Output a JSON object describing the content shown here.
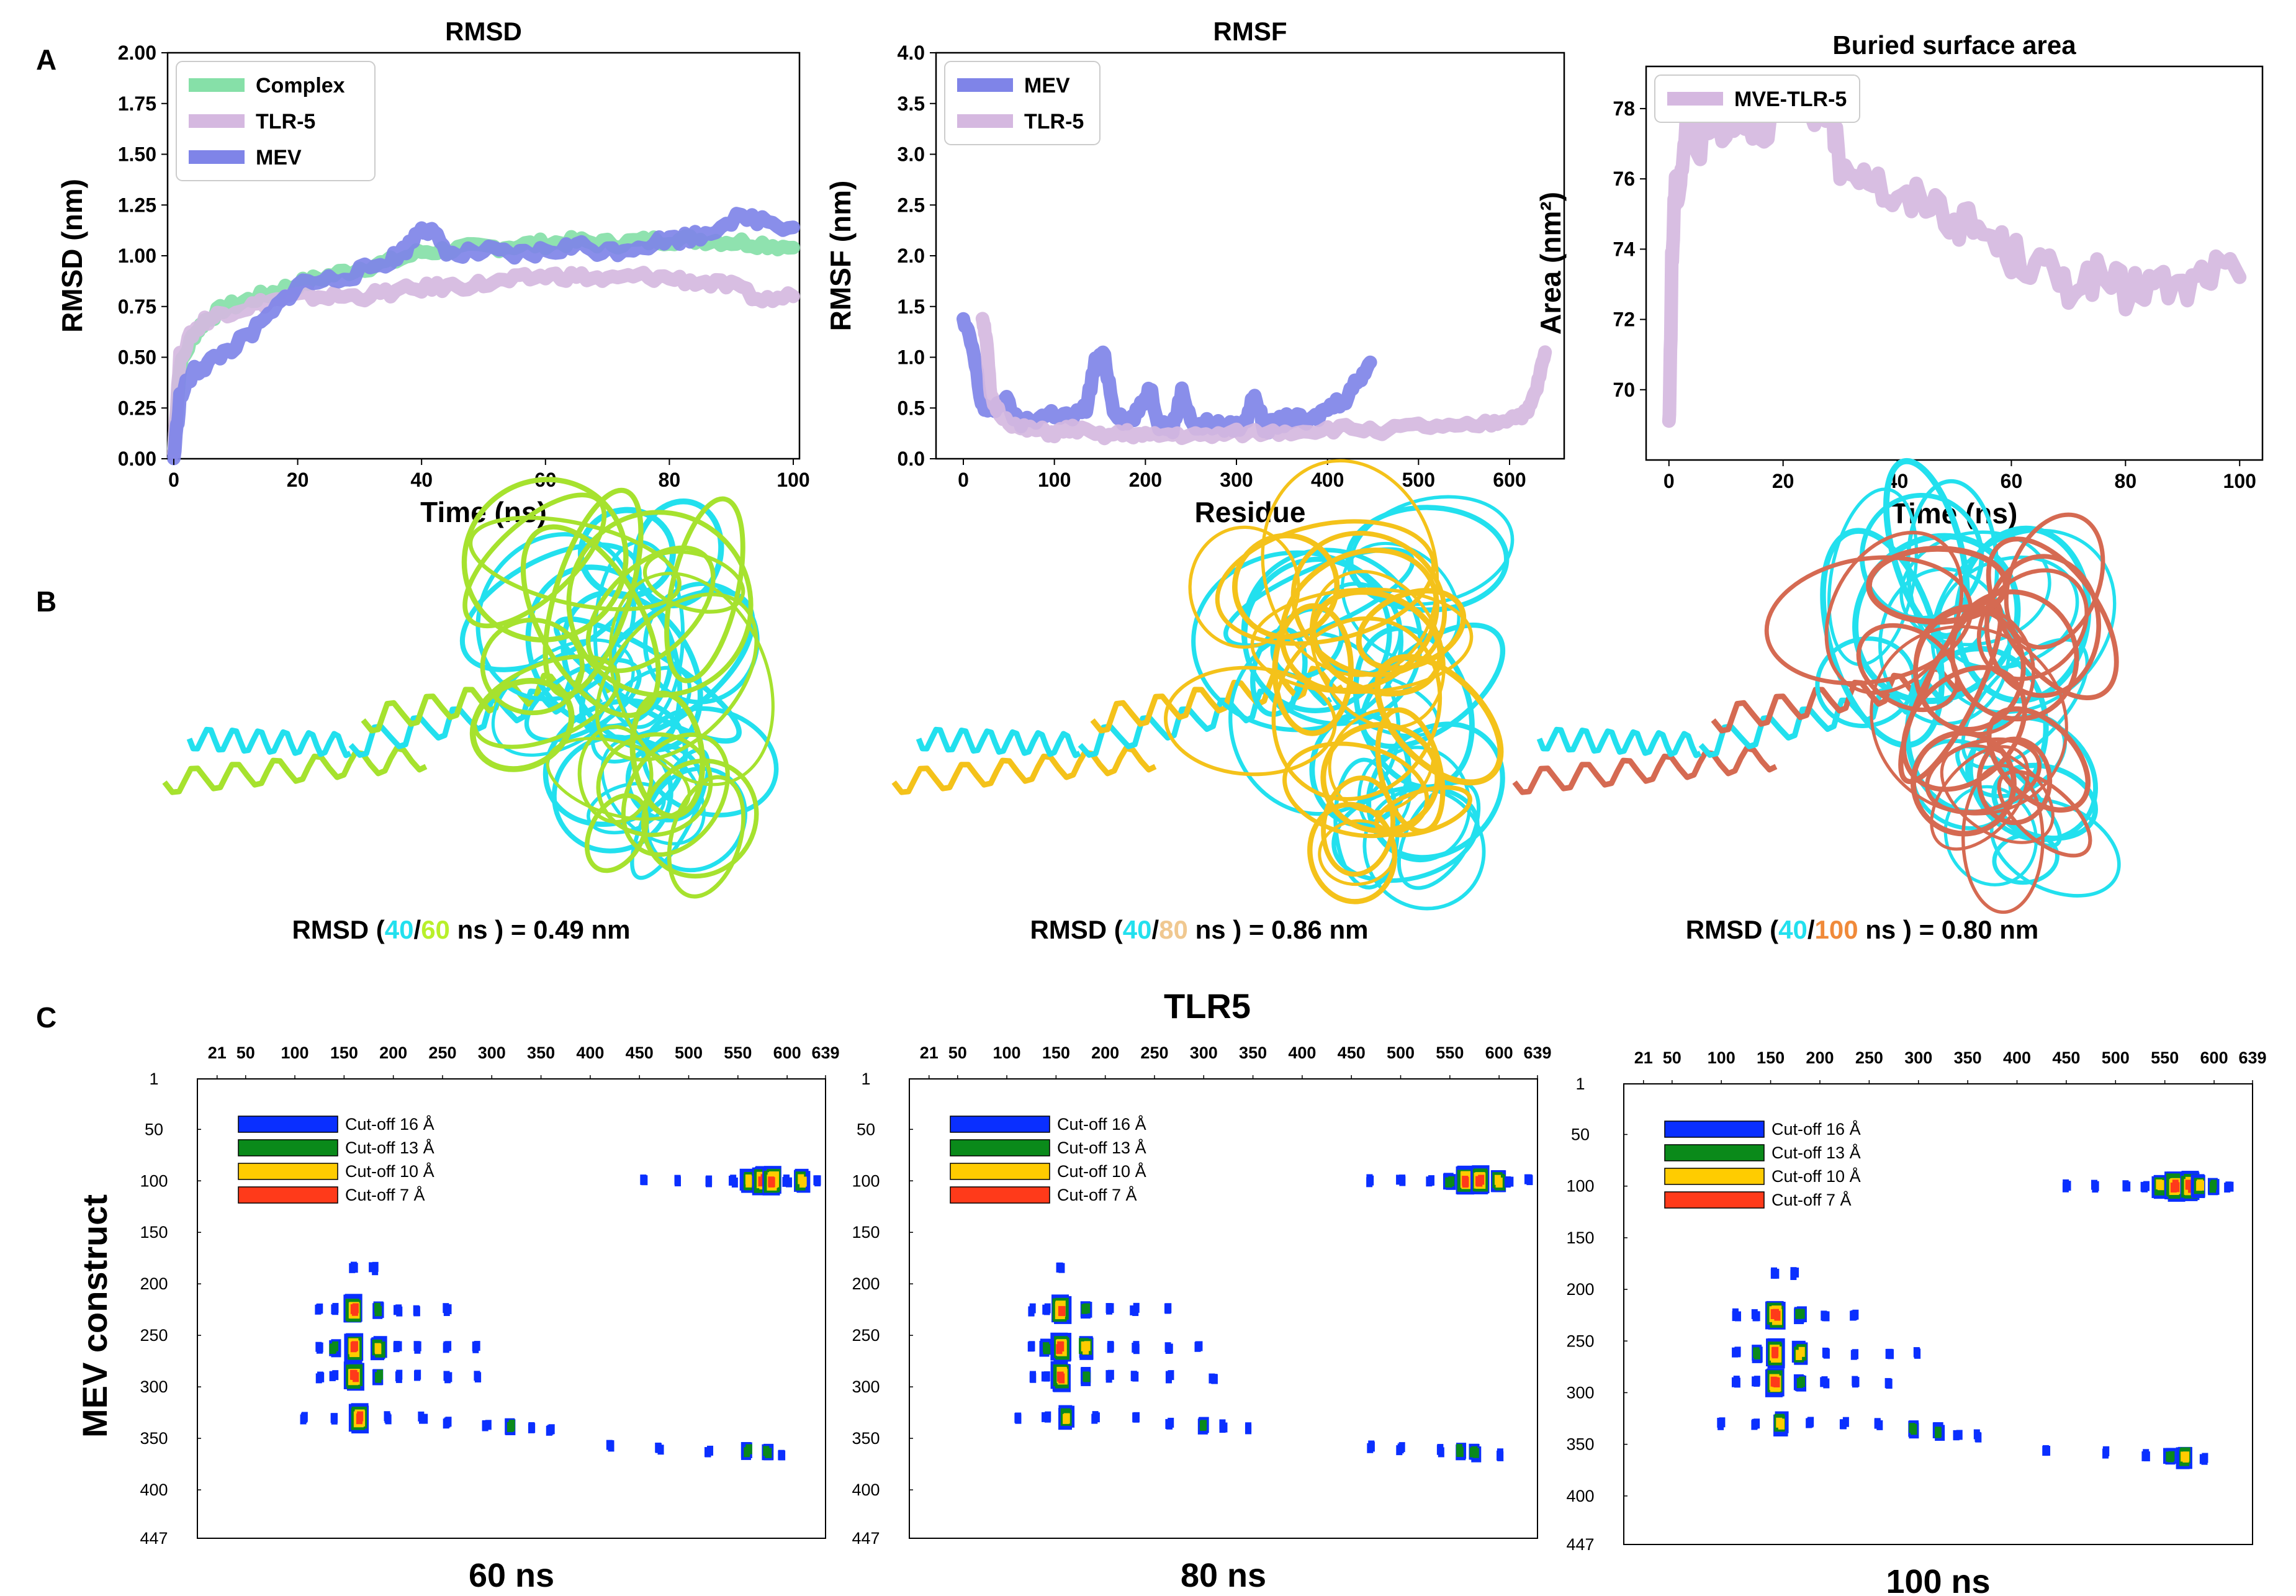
{
  "panel_labels": {
    "a": "A",
    "b": "B",
    "c": "C"
  },
  "colors": {
    "complex": "#86e0a8",
    "tlr5": "#d5b8e0",
    "mev": "#7f84e8",
    "cyan": "#22e0ee",
    "green_structure": "#a6e22e",
    "yellow_structure": "#f4c21a",
    "salmon_structure": "#d56a52",
    "text_60": "#b8f02a",
    "text_80": "#f0c890",
    "text_100": "#f08a3a",
    "contact_blue": "#0a2fff",
    "contact_green": "#0a8a1a",
    "contact_yellow": "#ffcc00",
    "contact_red": "#ff3a1a"
  },
  "chart_data": [
    {
      "type": "line",
      "title": "RMSD",
      "xlabel": "Time (ns)",
      "ylabel": "RMSD (nm)",
      "xlim": [
        -1,
        101
      ],
      "ylim": [
        0,
        2.0
      ],
      "xticks": [
        "0",
        "20",
        "40",
        "60",
        "80",
        "100"
      ],
      "yticks": [
        "0.00",
        "0.25",
        "0.50",
        "0.75",
        "1.00",
        "1.25",
        "1.50",
        "1.75",
        "2.00"
      ],
      "legend_position": "top-left",
      "series": [
        {
          "name": "Complex",
          "color": "#86e0a8",
          "x": [
            0,
            1,
            3,
            5,
            8,
            12,
            16,
            20,
            25,
            30,
            35,
            40,
            45,
            50,
            55,
            60,
            65,
            70,
            75,
            80,
            85,
            90,
            95,
            100
          ],
          "y": [
            0.05,
            0.45,
            0.6,
            0.68,
            0.74,
            0.78,
            0.82,
            0.86,
            0.9,
            0.94,
            0.97,
            1.02,
            1.03,
            1.04,
            1.05,
            1.06,
            1.07,
            1.06,
            1.07,
            1.08,
            1.08,
            1.07,
            1.06,
            1.04
          ]
        },
        {
          "name": "TLR-5",
          "color": "#d5b8e0",
          "x": [
            0,
            1,
            3,
            5,
            8,
            12,
            16,
            20,
            25,
            30,
            35,
            40,
            45,
            50,
            55,
            60,
            65,
            70,
            75,
            80,
            85,
            90,
            95,
            100
          ],
          "y": [
            0.05,
            0.5,
            0.62,
            0.68,
            0.72,
            0.75,
            0.78,
            0.8,
            0.8,
            0.8,
            0.82,
            0.84,
            0.85,
            0.86,
            0.88,
            0.9,
            0.9,
            0.88,
            0.9,
            0.89,
            0.87,
            0.85,
            0.78,
            0.8
          ]
        },
        {
          "name": "MEV",
          "color": "#7f84e8",
          "x": [
            0,
            1,
            3,
            5,
            8,
            12,
            16,
            20,
            25,
            30,
            35,
            38,
            40,
            42,
            45,
            50,
            55,
            60,
            65,
            70,
            75,
            80,
            85,
            90,
            95,
            100
          ],
          "y": [
            0.0,
            0.3,
            0.42,
            0.46,
            0.52,
            0.6,
            0.72,
            0.86,
            0.88,
            0.92,
            0.98,
            1.05,
            1.15,
            1.1,
            1.0,
            1.02,
            1.0,
            1.02,
            1.05,
            1.02,
            1.05,
            1.08,
            1.1,
            1.18,
            1.18,
            1.14
          ]
        }
      ]
    },
    {
      "type": "line",
      "title": "RMSF",
      "xlabel": "Residue",
      "ylabel": "RMSF (nm)",
      "xlim": [
        -30,
        660
      ],
      "ylim": [
        0,
        4.0
      ],
      "xticks": [
        "0",
        "100",
        "200",
        "300",
        "400",
        "500",
        "600"
      ],
      "yticks": [
        "0.0",
        "0.5",
        "1.0",
        "1.5",
        "2.0",
        "2.5",
        "3.0",
        "3.5",
        "4.0"
      ],
      "legend_position": "top-left",
      "series": [
        {
          "name": "MEV",
          "color": "#7f84e8",
          "x": [
            0,
            10,
            20,
            30,
            45,
            60,
            80,
            100,
            120,
            135,
            145,
            155,
            165,
            180,
            195,
            205,
            215,
            230,
            240,
            255,
            270,
            290,
            310,
            320,
            330,
            345,
            360,
            380,
            400,
            420,
            435,
            447
          ],
          "y": [
            1.35,
            1.1,
            0.55,
            0.45,
            0.6,
            0.35,
            0.4,
            0.45,
            0.4,
            0.5,
            0.95,
            1.0,
            0.5,
            0.35,
            0.5,
            0.7,
            0.35,
            0.3,
            0.65,
            0.3,
            0.35,
            0.3,
            0.35,
            0.65,
            0.3,
            0.35,
            0.4,
            0.35,
            0.5,
            0.6,
            0.8,
            0.95
          ]
        },
        {
          "name": "TLR-5",
          "color": "#d5b8e0",
          "x": [
            21,
            25,
            30,
            40,
            60,
            80,
            100,
            120,
            150,
            180,
            200,
            230,
            260,
            300,
            340,
            380,
            420,
            460,
            500,
            540,
            580,
            600,
            620,
            630,
            639
          ],
          "y": [
            1.4,
            1.2,
            0.6,
            0.45,
            0.3,
            0.28,
            0.25,
            0.3,
            0.22,
            0.25,
            0.22,
            0.24,
            0.22,
            0.25,
            0.26,
            0.28,
            0.3,
            0.28,
            0.32,
            0.3,
            0.35,
            0.4,
            0.45,
            0.7,
            1.05
          ]
        }
      ]
    },
    {
      "type": "line",
      "title": "Buried surface area",
      "xlabel": "Time (ns)",
      "ylabel": "Area (nm²)",
      "xlim": [
        -4,
        104
      ],
      "ylim": [
        68.0,
        79.2
      ],
      "xticks": [
        "0",
        "20",
        "40",
        "60",
        "80",
        "100"
      ],
      "yticks": [
        "70",
        "72",
        "74",
        "76",
        "78"
      ],
      "legend_position": "top-left",
      "series": [
        {
          "name": "MVE-TLR-5",
          "color": "#d5b8e0",
          "x": [
            0,
            0.5,
            1,
            2,
            3,
            5,
            8,
            12,
            16,
            20,
            25,
            28,
            30,
            35,
            40,
            45,
            50,
            55,
            60,
            65,
            70,
            75,
            80,
            85,
            90,
            95,
            100
          ],
          "y": [
            68.6,
            73.5,
            75.5,
            76.0,
            77.5,
            77.0,
            77.5,
            77.8,
            77.5,
            78.0,
            77.5,
            78.2,
            76.5,
            76.2,
            75.2,
            75.5,
            74.8,
            74.5,
            73.8,
            73.5,
            73.0,
            73.2,
            72.8,
            73.0,
            72.8,
            73.4,
            73.2
          ]
        }
      ]
    },
    {
      "type": "heatmap",
      "title": "TLR5",
      "subtitle": "60 ns",
      "xlabel": "TLR5",
      "ylabel": "MEV construct",
      "xticks": [
        "21",
        "50",
        "100",
        "150",
        "200",
        "250",
        "300",
        "350",
        "400",
        "450",
        "500",
        "550",
        "600",
        "639"
      ],
      "yticks": [
        "1",
        "50",
        "100",
        "150",
        "200",
        "250",
        "300",
        "350",
        "400",
        "447"
      ],
      "legend": [
        "Cut-off 16 Å",
        "Cut-off 13 Å",
        "Cut-off 10 Å",
        "Cut-off 7 Å"
      ],
      "contacts": [
        [
          160,
          185,
          1
        ],
        [
          180,
          185,
          1
        ],
        [
          125,
          225,
          1
        ],
        [
          140,
          225,
          1
        ],
        [
          160,
          225,
          4
        ],
        [
          185,
          225,
          2
        ],
        [
          205,
          225,
          1
        ],
        [
          225,
          225,
          1
        ],
        [
          255,
          225,
          1
        ],
        [
          125,
          262,
          1
        ],
        [
          140,
          262,
          2
        ],
        [
          160,
          262,
          4
        ],
        [
          185,
          262,
          3
        ],
        [
          205,
          262,
          1
        ],
        [
          225,
          262,
          1
        ],
        [
          255,
          262,
          1
        ],
        [
          285,
          262,
          1
        ],
        [
          125,
          290,
          1
        ],
        [
          140,
          290,
          1
        ],
        [
          160,
          290,
          4
        ],
        [
          185,
          290,
          2
        ],
        [
          205,
          290,
          1
        ],
        [
          225,
          290,
          1
        ],
        [
          255,
          290,
          1
        ],
        [
          285,
          290,
          1
        ],
        [
          110,
          330,
          1
        ],
        [
          140,
          330,
          1
        ],
        [
          165,
          330,
          4
        ],
        [
          195,
          330,
          1
        ],
        [
          230,
          330,
          1
        ],
        [
          255,
          335,
          1
        ],
        [
          295,
          338,
          1
        ],
        [
          320,
          338,
          2
        ],
        [
          340,
          340,
          1
        ],
        [
          360,
          342,
          1
        ],
        [
          420,
          358,
          1
        ],
        [
          470,
          360,
          1
        ],
        [
          520,
          362,
          1
        ],
        [
          560,
          362,
          2
        ],
        [
          580,
          364,
          2
        ],
        [
          595,
          365,
          1
        ],
        [
          455,
          98,
          1
        ],
        [
          490,
          100,
          1
        ],
        [
          520,
          100,
          1
        ],
        [
          545,
          100,
          1
        ],
        [
          560,
          100,
          3
        ],
        [
          575,
          100,
          4
        ],
        [
          585,
          100,
          4
        ],
        [
          600,
          100,
          1
        ],
        [
          615,
          100,
          3
        ],
        [
          630,
          100,
          1
        ]
      ]
    },
    {
      "type": "heatmap",
      "subtitle": "80 ns",
      "xticks": [
        "21",
        "50",
        "100",
        "150",
        "200",
        "250",
        "300",
        "350",
        "400",
        "450",
        "500",
        "550",
        "600",
        "639"
      ],
      "yticks": [
        "1",
        "50",
        "100",
        "150",
        "200",
        "250",
        "300",
        "350",
        "400",
        "447"
      ],
      "legend": [
        "Cut-off 16 Å",
        "Cut-off 13 Å",
        "Cut-off 10 Å",
        "Cut-off 7 Å"
      ],
      "contacts": [
        [
          155,
          185,
          1
        ],
        [
          125,
          225,
          1
        ],
        [
          140,
          225,
          1
        ],
        [
          155,
          225,
          4
        ],
        [
          180,
          225,
          2
        ],
        [
          205,
          225,
          1
        ],
        [
          230,
          225,
          1
        ],
        [
          265,
          225,
          1
        ],
        [
          125,
          262,
          1
        ],
        [
          140,
          262,
          2
        ],
        [
          155,
          262,
          4
        ],
        [
          180,
          262,
          3
        ],
        [
          205,
          262,
          1
        ],
        [
          230,
          262,
          1
        ],
        [
          265,
          262,
          1
        ],
        [
          295,
          262,
          1
        ],
        [
          125,
          290,
          1
        ],
        [
          140,
          290,
          1
        ],
        [
          155,
          290,
          4
        ],
        [
          180,
          290,
          2
        ],
        [
          205,
          290,
          1
        ],
        [
          230,
          290,
          1
        ],
        [
          265,
          290,
          1
        ],
        [
          310,
          292,
          1
        ],
        [
          110,
          330,
          1
        ],
        [
          140,
          330,
          1
        ],
        [
          160,
          330,
          3
        ],
        [
          190,
          330,
          1
        ],
        [
          230,
          330,
          1
        ],
        [
          265,
          335,
          1
        ],
        [
          300,
          338,
          2
        ],
        [
          320,
          338,
          1
        ],
        [
          345,
          340,
          1
        ],
        [
          470,
          358,
          1
        ],
        [
          500,
          360,
          1
        ],
        [
          540,
          362,
          1
        ],
        [
          560,
          362,
          2
        ],
        [
          575,
          364,
          2
        ],
        [
          600,
          366,
          1
        ],
        [
          470,
          100,
          1
        ],
        [
          500,
          100,
          1
        ],
        [
          530,
          100,
          1
        ],
        [
          550,
          100,
          2
        ],
        [
          565,
          100,
          4
        ],
        [
          580,
          100,
          4
        ],
        [
          600,
          100,
          3
        ],
        [
          610,
          100,
          1
        ],
        [
          630,
          100,
          1
        ]
      ]
    },
    {
      "type": "heatmap",
      "subtitle": "100 ns",
      "xticks": [
        "21",
        "50",
        "100",
        "150",
        "200",
        "250",
        "300",
        "350",
        "400",
        "450",
        "500",
        "550",
        "600",
        "639"
      ],
      "yticks": [
        "1",
        "50",
        "100",
        "150",
        "200",
        "250",
        "300",
        "350",
        "400",
        "447"
      ],
      "legend": [
        "Cut-off 16 Å",
        "Cut-off 13 Å",
        "Cut-off 10 Å",
        "Cut-off 7 Å"
      ],
      "contacts": [
        [
          155,
          185,
          1
        ],
        [
          175,
          185,
          1
        ],
        [
          115,
          225,
          1
        ],
        [
          135,
          225,
          1
        ],
        [
          155,
          225,
          4
        ],
        [
          180,
          225,
          2
        ],
        [
          205,
          225,
          1
        ],
        [
          235,
          225,
          1
        ],
        [
          115,
          262,
          1
        ],
        [
          135,
          262,
          2
        ],
        [
          155,
          262,
          4
        ],
        [
          180,
          262,
          3
        ],
        [
          205,
          262,
          1
        ],
        [
          235,
          262,
          1
        ],
        [
          270,
          262,
          1
        ],
        [
          300,
          262,
          1
        ],
        [
          115,
          290,
          1
        ],
        [
          135,
          290,
          1
        ],
        [
          155,
          290,
          4
        ],
        [
          180,
          290,
          2
        ],
        [
          205,
          290,
          1
        ],
        [
          235,
          290,
          1
        ],
        [
          270,
          290,
          1
        ],
        [
          100,
          330,
          1
        ],
        [
          135,
          330,
          1
        ],
        [
          160,
          330,
          3
        ],
        [
          190,
          330,
          1
        ],
        [
          225,
          330,
          1
        ],
        [
          260,
          330,
          1
        ],
        [
          295,
          335,
          2
        ],
        [
          320,
          338,
          2
        ],
        [
          340,
          340,
          1
        ],
        [
          360,
          342,
          1
        ],
        [
          430,
          356,
          1
        ],
        [
          490,
          358,
          1
        ],
        [
          530,
          360,
          1
        ],
        [
          555,
          362,
          2
        ],
        [
          570,
          362,
          3
        ],
        [
          590,
          364,
          1
        ],
        [
          450,
          100,
          1
        ],
        [
          480,
          100,
          1
        ],
        [
          510,
          100,
          1
        ],
        [
          530,
          100,
          1
        ],
        [
          545,
          100,
          3
        ],
        [
          560,
          100,
          4
        ],
        [
          575,
          100,
          4
        ],
        [
          585,
          100,
          3
        ],
        [
          600,
          100,
          2
        ],
        [
          615,
          100,
          1
        ]
      ]
    }
  ],
  "structures": [
    {
      "caption_prefix": "RMSD (",
      "t1": "40",
      "sep": "/",
      "t2": "60",
      "suffix": " ns ) = 0.49 nm"
    },
    {
      "caption_prefix": "RMSD (",
      "t1": "40",
      "sep": "/",
      "t2": "80",
      "suffix": " ns ) = 0.86 nm"
    },
    {
      "caption_prefix": "RMSD (",
      "t1": "40",
      "sep": "/",
      "t2": "100",
      "suffix": " ns ) = 0.80 nm"
    }
  ]
}
